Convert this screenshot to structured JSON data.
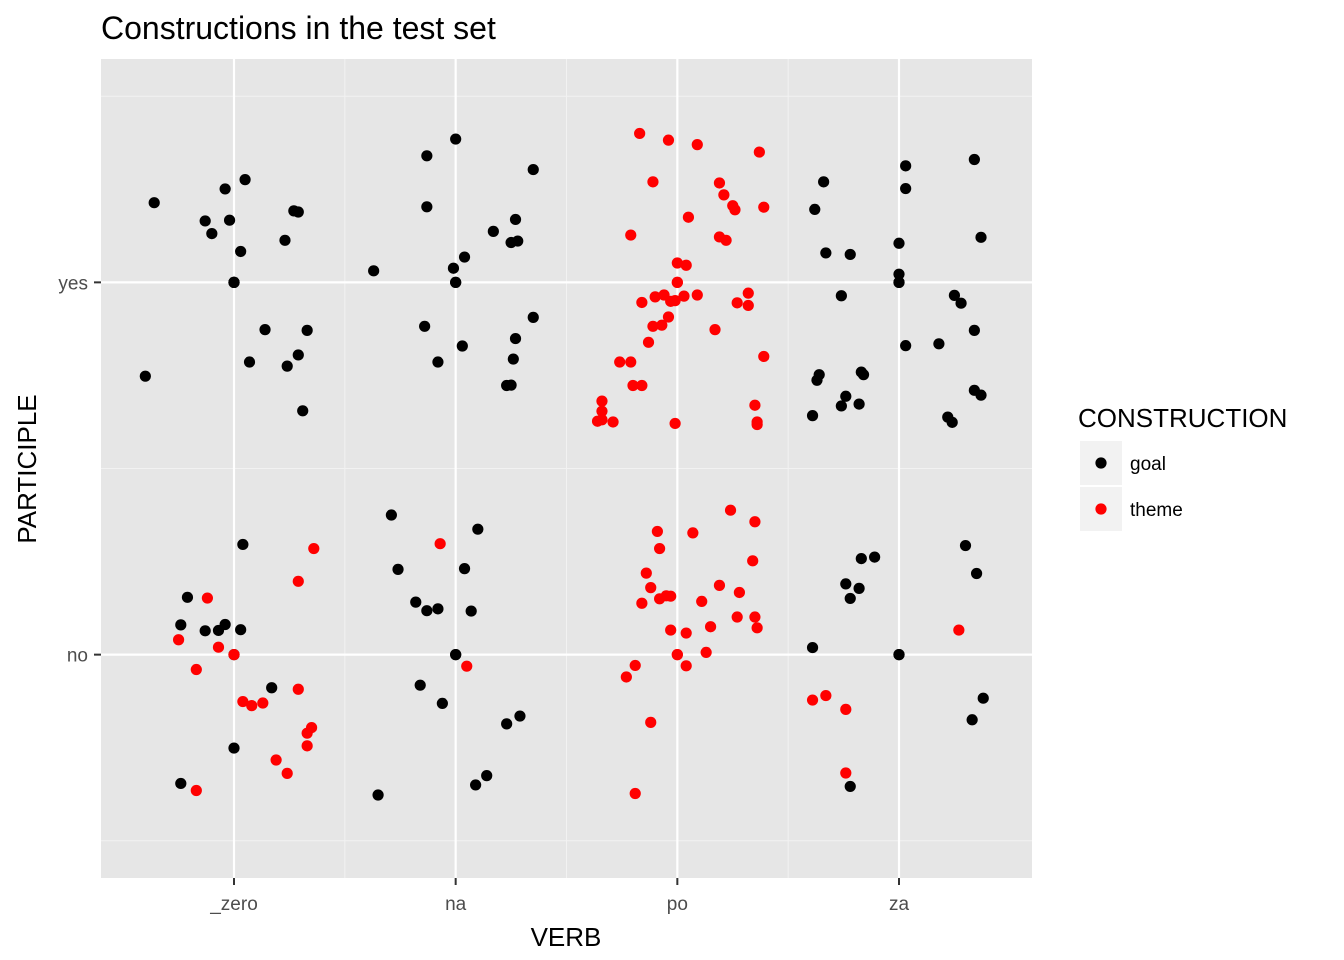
{
  "chart_data": {
    "type": "scatter",
    "title": "Constructions in the test set",
    "xlabel": "VERB",
    "ylabel": "PARTICIPLE",
    "x_categories": [
      "_zero",
      "na",
      "po",
      "za"
    ],
    "y_categories": [
      "no",
      "yes"
    ],
    "jitter": true,
    "grid": true,
    "legend": {
      "title": "CONSTRUCTION",
      "placement": "right",
      "entries": [
        {
          "name": "goal",
          "color": "#000000"
        },
        {
          "name": "theme",
          "color": "#ff0000"
        }
      ]
    },
    "series": [
      {
        "name": "goal",
        "color": "#000000",
        "points": [
          {
            "x": 0.64,
            "y": 1.214
          },
          {
            "x": 0.87,
            "y": 1.165
          },
          {
            "x": 0.9,
            "y": 1.131
          },
          {
            "x": 0.96,
            "y": 1.251
          },
          {
            "x": 1.05,
            "y": 1.276
          },
          {
            "x": 0.98,
            "y": 1.167
          },
          {
            "x": 1.03,
            "y": 1.083
          },
          {
            "x": 1.27,
            "y": 1.192
          },
          {
            "x": 1.29,
            "y": 1.189
          },
          {
            "x": 1.23,
            "y": 1.113
          },
          {
            "x": 1.0,
            "y": 1.0
          },
          {
            "x": 1.0,
            "y": 1.0
          },
          {
            "x": 1.0,
            "y": 1.0
          },
          {
            "x": 0.6,
            "y": 0.748
          },
          {
            "x": 1.14,
            "y": 0.873
          },
          {
            "x": 1.33,
            "y": 0.871
          },
          {
            "x": 1.07,
            "y": 0.786
          },
          {
            "x": 1.29,
            "y": 0.805
          },
          {
            "x": 1.24,
            "y": 0.775
          },
          {
            "x": 1.31,
            "y": 0.655
          },
          {
            "x": 2.0,
            "y": 1.385
          },
          {
            "x": 1.87,
            "y": 1.34
          },
          {
            "x": 1.87,
            "y": 1.203
          },
          {
            "x": 2.35,
            "y": 1.303
          },
          {
            "x": 2.17,
            "y": 1.137
          },
          {
            "x": 2.28,
            "y": 1.111
          },
          {
            "x": 2.25,
            "y": 1.107
          },
          {
            "x": 2.27,
            "y": 1.169
          },
          {
            "x": 2.04,
            "y": 1.068
          },
          {
            "x": 1.99,
            "y": 1.038
          },
          {
            "x": 1.63,
            "y": 1.031
          },
          {
            "x": 2.0,
            "y": 1.0
          },
          {
            "x": 2.0,
            "y": 1.0
          },
          {
            "x": 1.86,
            "y": 0.882
          },
          {
            "x": 2.35,
            "y": 0.906
          },
          {
            "x": 2.27,
            "y": 0.849
          },
          {
            "x": 2.03,
            "y": 0.829
          },
          {
            "x": 2.26,
            "y": 0.794
          },
          {
            "x": 1.92,
            "y": 0.786
          },
          {
            "x": 2.23,
            "y": 0.723
          },
          {
            "x": 2.25,
            "y": 0.724
          },
          {
            "x": 3.62,
            "y": 1.196
          },
          {
            "x": 3.66,
            "y": 1.27
          },
          {
            "x": 3.67,
            "y": 1.079
          },
          {
            "x": 3.78,
            "y": 1.075
          },
          {
            "x": 3.74,
            "y": 0.964
          },
          {
            "x": 4.0,
            "y": 1.105
          },
          {
            "x": 4.0,
            "y": 1.022
          },
          {
            "x": 4.0,
            "y": 1.0
          },
          {
            "x": 4.0,
            "y": 1.0
          },
          {
            "x": 4.03,
            "y": 1.313
          },
          {
            "x": 4.03,
            "y": 1.252
          },
          {
            "x": 4.34,
            "y": 1.33
          },
          {
            "x": 4.37,
            "y": 1.121
          },
          {
            "x": 4.03,
            "y": 0.83
          },
          {
            "x": 3.64,
            "y": 0.752
          },
          {
            "x": 3.63,
            "y": 0.737
          },
          {
            "x": 3.74,
            "y": 0.668
          },
          {
            "x": 3.83,
            "y": 0.759
          },
          {
            "x": 3.84,
            "y": 0.752
          },
          {
            "x": 3.82,
            "y": 0.673
          },
          {
            "x": 3.76,
            "y": 0.694
          },
          {
            "x": 3.61,
            "y": 0.642
          },
          {
            "x": 4.25,
            "y": 0.965
          },
          {
            "x": 4.28,
            "y": 0.944
          },
          {
            "x": 4.34,
            "y": 0.871
          },
          {
            "x": 4.18,
            "y": 0.835
          },
          {
            "x": 4.34,
            "y": 0.71
          },
          {
            "x": 4.37,
            "y": 0.697
          },
          {
            "x": 4.22,
            "y": 0.638
          },
          {
            "x": 4.24,
            "y": 0.624
          },
          {
            "x": 1.04,
            "y": 0.296
          },
          {
            "x": 0.79,
            "y": 0.154
          },
          {
            "x": 0.76,
            "y": 0.08
          },
          {
            "x": 0.87,
            "y": 0.064
          },
          {
            "x": 0.93,
            "y": 0.065
          },
          {
            "x": 0.96,
            "y": 0.081
          },
          {
            "x": 1.03,
            "y": 0.067
          },
          {
            "x": 1.0,
            "y": 0.0
          },
          {
            "x": 1.17,
            "y": -0.089
          },
          {
            "x": 1.0,
            "y": -0.251
          },
          {
            "x": 0.76,
            "y": -0.346
          },
          {
            "x": 1.71,
            "y": 0.375
          },
          {
            "x": 1.74,
            "y": 0.229
          },
          {
            "x": 1.82,
            "y": 0.141
          },
          {
            "x": 1.92,
            "y": 0.123
          },
          {
            "x": 1.87,
            "y": 0.118
          },
          {
            "x": 2.04,
            "y": 0.231
          },
          {
            "x": 2.07,
            "y": 0.117
          },
          {
            "x": 2.1,
            "y": 0.337
          },
          {
            "x": 2.0,
            "y": 0.0
          },
          {
            "x": 2.0,
            "y": 0.0
          },
          {
            "x": 1.84,
            "y": -0.082
          },
          {
            "x": 1.94,
            "y": -0.131
          },
          {
            "x": 2.23,
            "y": -0.186
          },
          {
            "x": 2.29,
            "y": -0.165
          },
          {
            "x": 1.65,
            "y": -0.377
          },
          {
            "x": 2.09,
            "y": -0.35
          },
          {
            "x": 2.14,
            "y": -0.325
          },
          {
            "x": 3.89,
            "y": 0.262
          },
          {
            "x": 3.83,
            "y": 0.258
          },
          {
            "x": 3.76,
            "y": 0.19
          },
          {
            "x": 3.82,
            "y": 0.178
          },
          {
            "x": 3.78,
            "y": 0.151
          },
          {
            "x": 3.61,
            "y": 0.019
          },
          {
            "x": 4.0,
            "y": 0.0
          },
          {
            "x": 4.0,
            "y": 0.0
          },
          {
            "x": 4.3,
            "y": 0.293
          },
          {
            "x": 4.35,
            "y": 0.218
          },
          {
            "x": 4.38,
            "y": -0.117
          },
          {
            "x": 4.33,
            "y": -0.175
          },
          {
            "x": 3.78,
            "y": -0.354
          }
        ]
      },
      {
        "name": "theme",
        "color": "#ff0000",
        "points": [
          {
            "x": 2.83,
            "y": 1.4
          },
          {
            "x": 2.96,
            "y": 1.382
          },
          {
            "x": 3.09,
            "y": 1.37
          },
          {
            "x": 3.37,
            "y": 1.35
          },
          {
            "x": 2.89,
            "y": 1.27
          },
          {
            "x": 3.19,
            "y": 1.267
          },
          {
            "x": 3.21,
            "y": 1.235
          },
          {
            "x": 3.25,
            "y": 1.206
          },
          {
            "x": 3.26,
            "y": 1.195
          },
          {
            "x": 3.39,
            "y": 1.202
          },
          {
            "x": 3.05,
            "y": 1.175
          },
          {
            "x": 2.79,
            "y": 1.127
          },
          {
            "x": 3.19,
            "y": 1.122
          },
          {
            "x": 3.22,
            "y": 1.113
          },
          {
            "x": 3.0,
            "y": 1.052
          },
          {
            "x": 3.04,
            "y": 1.046
          },
          {
            "x": 3.0,
            "y": 1.0
          },
          {
            "x": 3.0,
            "y": 1.0
          },
          {
            "x": 2.9,
            "y": 0.961
          },
          {
            "x": 2.84,
            "y": 0.946
          },
          {
            "x": 2.94,
            "y": 0.966
          },
          {
            "x": 3.03,
            "y": 0.963
          },
          {
            "x": 3.09,
            "y": 0.966
          },
          {
            "x": 2.93,
            "y": 0.885
          },
          {
            "x": 2.96,
            "y": 0.907
          },
          {
            "x": 2.87,
            "y": 0.839
          },
          {
            "x": 2.89,
            "y": 0.882
          },
          {
            "x": 2.99,
            "y": 0.951
          },
          {
            "x": 2.97,
            "y": 0.949
          },
          {
            "x": 3.32,
            "y": 0.971
          },
          {
            "x": 3.27,
            "y": 0.945
          },
          {
            "x": 3.32,
            "y": 0.938
          },
          {
            "x": 3.17,
            "y": 0.873
          },
          {
            "x": 2.79,
            "y": 0.786
          },
          {
            "x": 2.84,
            "y": 0.723
          },
          {
            "x": 2.74,
            "y": 0.786
          },
          {
            "x": 2.8,
            "y": 0.723
          },
          {
            "x": 3.39,
            "y": 0.801
          },
          {
            "x": 2.71,
            "y": 0.625
          },
          {
            "x": 2.66,
            "y": 0.631
          },
          {
            "x": 2.64,
            "y": 0.627
          },
          {
            "x": 2.66,
            "y": 0.681
          },
          {
            "x": 2.66,
            "y": 0.654
          },
          {
            "x": 3.35,
            "y": 0.67
          },
          {
            "x": 3.36,
            "y": 0.625
          },
          {
            "x": 3.36,
            "y": 0.618
          },
          {
            "x": 2.99,
            "y": 0.621
          },
          {
            "x": 0.88,
            "y": 0.152
          },
          {
            "x": 0.75,
            "y": 0.04
          },
          {
            "x": 0.83,
            "y": -0.04
          },
          {
            "x": 0.93,
            "y": 0.02
          },
          {
            "x": 1.0,
            "y": 0.0
          },
          {
            "x": 1.04,
            "y": -0.126
          },
          {
            "x": 1.08,
            "y": -0.137
          },
          {
            "x": 1.13,
            "y": -0.13
          },
          {
            "x": 1.29,
            "y": -0.093
          },
          {
            "x": 1.29,
            "y": 0.197
          },
          {
            "x": 1.36,
            "y": 0.285
          },
          {
            "x": 1.19,
            "y": -0.283
          },
          {
            "x": 1.24,
            "y": -0.319
          },
          {
            "x": 1.33,
            "y": -0.211
          },
          {
            "x": 1.35,
            "y": -0.196
          },
          {
            "x": 1.33,
            "y": -0.245
          },
          {
            "x": 0.83,
            "y": -0.365
          },
          {
            "x": 1.93,
            "y": 0.298
          },
          {
            "x": 2.05,
            "y": -0.031
          },
          {
            "x": 2.91,
            "y": 0.331
          },
          {
            "x": 2.92,
            "y": 0.285
          },
          {
            "x": 3.07,
            "y": 0.327
          },
          {
            "x": 3.24,
            "y": 0.388
          },
          {
            "x": 3.35,
            "y": 0.357
          },
          {
            "x": 3.34,
            "y": 0.252
          },
          {
            "x": 2.86,
            "y": 0.219
          },
          {
            "x": 2.88,
            "y": 0.18
          },
          {
            "x": 2.84,
            "y": 0.138
          },
          {
            "x": 2.92,
            "y": 0.15
          },
          {
            "x": 2.95,
            "y": 0.158
          },
          {
            "x": 2.97,
            "y": 0.157
          },
          {
            "x": 3.11,
            "y": 0.143
          },
          {
            "x": 3.19,
            "y": 0.186
          },
          {
            "x": 3.28,
            "y": 0.167
          },
          {
            "x": 3.35,
            "y": 0.101
          },
          {
            "x": 3.36,
            "y": 0.072
          },
          {
            "x": 3.27,
            "y": 0.101
          },
          {
            "x": 3.15,
            "y": 0.075
          },
          {
            "x": 2.97,
            "y": 0.066
          },
          {
            "x": 3.04,
            "y": 0.058
          },
          {
            "x": 3.0,
            "y": 0.0
          },
          {
            "x": 3.0,
            "y": 0.0
          },
          {
            "x": 3.13,
            "y": 0.006
          },
          {
            "x": 3.04,
            "y": -0.03
          },
          {
            "x": 2.81,
            "y": -0.029
          },
          {
            "x": 2.77,
            "y": -0.06
          },
          {
            "x": 2.88,
            "y": -0.182
          },
          {
            "x": 2.81,
            "y": -0.373
          },
          {
            "x": 3.67,
            "y": -0.11
          },
          {
            "x": 3.61,
            "y": -0.122
          },
          {
            "x": 3.76,
            "y": -0.147
          },
          {
            "x": 3.76,
            "y": -0.318
          },
          {
            "x": 4.27,
            "y": 0.066
          }
        ]
      }
    ]
  }
}
